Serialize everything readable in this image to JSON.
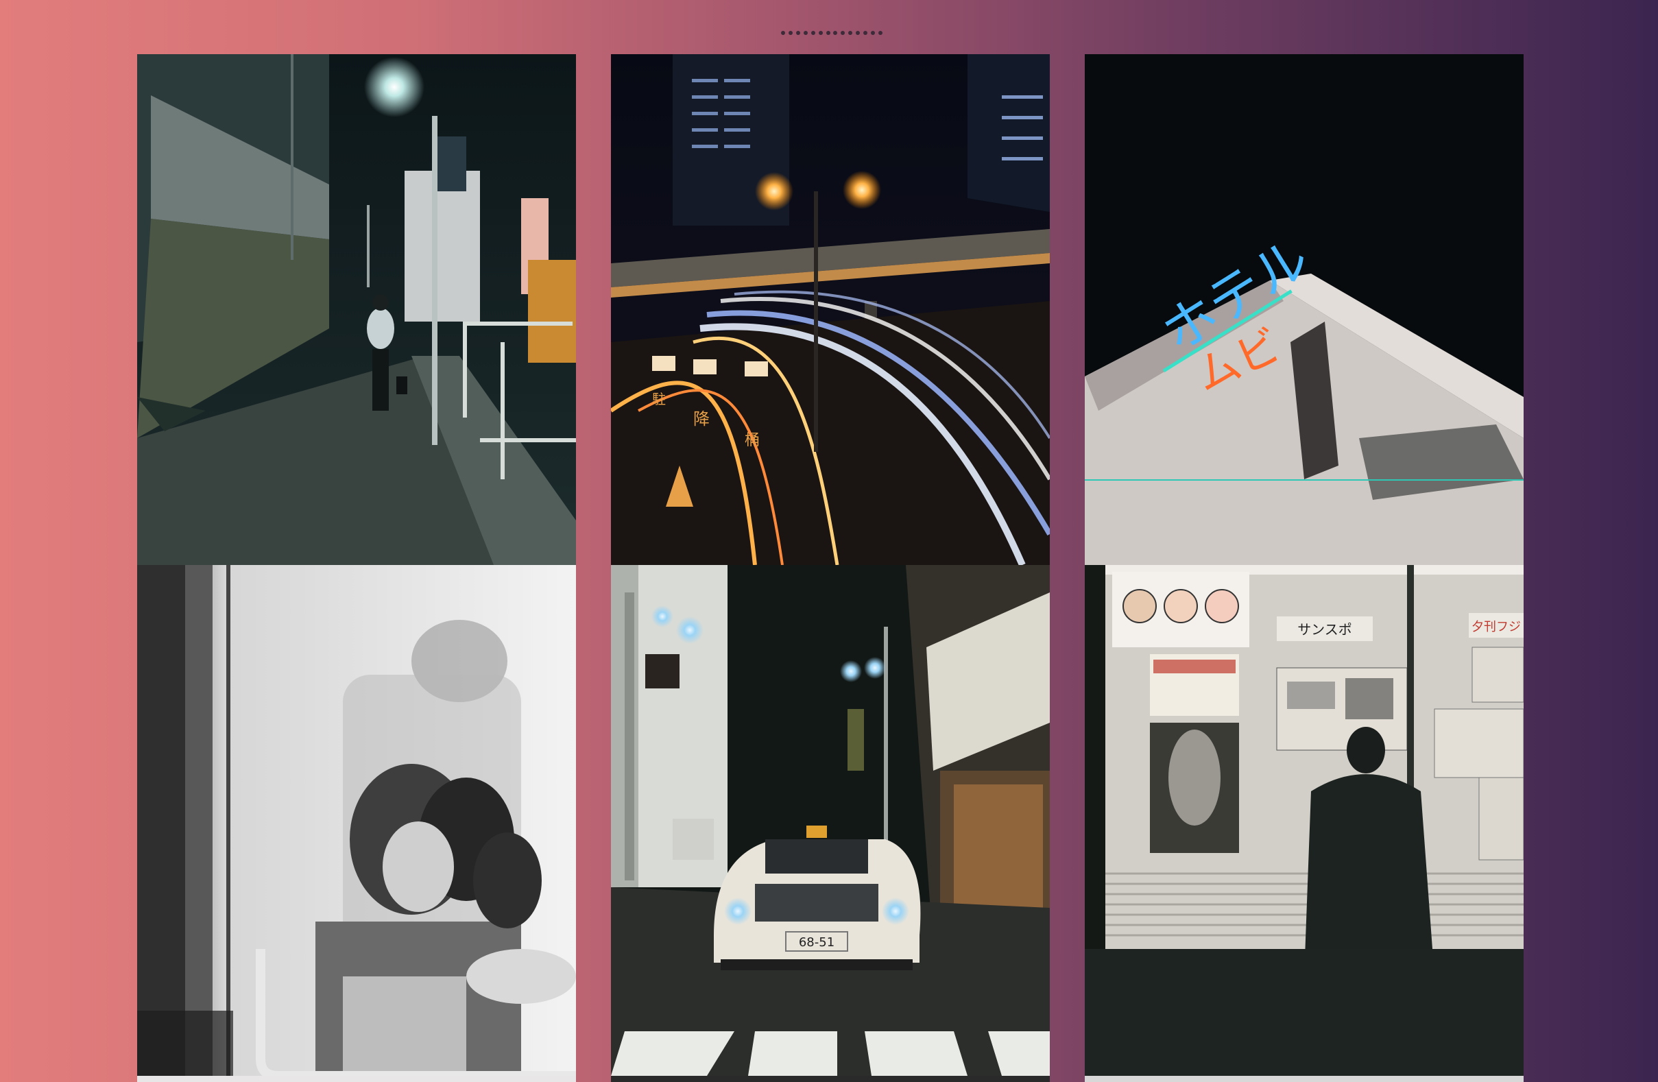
{
  "pager": {
    "count": 14,
    "active_index": 0
  },
  "gallery": {
    "photos": [
      {
        "id": "photo-1",
        "subject": "night-street-walker",
        "tone": "color"
      },
      {
        "id": "photo-2",
        "subject": "highway-light-trails",
        "tone": "color"
      },
      {
        "id": "photo-3",
        "subject": "neon-hotel-sign",
        "tone": "color"
      },
      {
        "id": "photo-4",
        "subject": "train-window-passengers",
        "tone": "monochrome"
      },
      {
        "id": "photo-5",
        "subject": "taxi-crosswalk-night",
        "tone": "color"
      },
      {
        "id": "photo-6",
        "subject": "man-at-poster-board",
        "tone": "color"
      }
    ],
    "neon_sign_text": "ホテル",
    "neon_sign_text_orange": "ムビ",
    "poster_board_banner": "サンスポ",
    "poster_board_banner_right": "夕刊フジ",
    "taxi_plate": "68-51",
    "road_markings": [
      "降",
      "桶",
      "駐"
    ]
  },
  "colors": {
    "gradient_left": "#e27d7c",
    "gradient_right": "#3b2550",
    "pager_dot": "#3e2b3a",
    "neon_blue": "#4ab8ff",
    "neon_orange": "#ff6a2a"
  }
}
